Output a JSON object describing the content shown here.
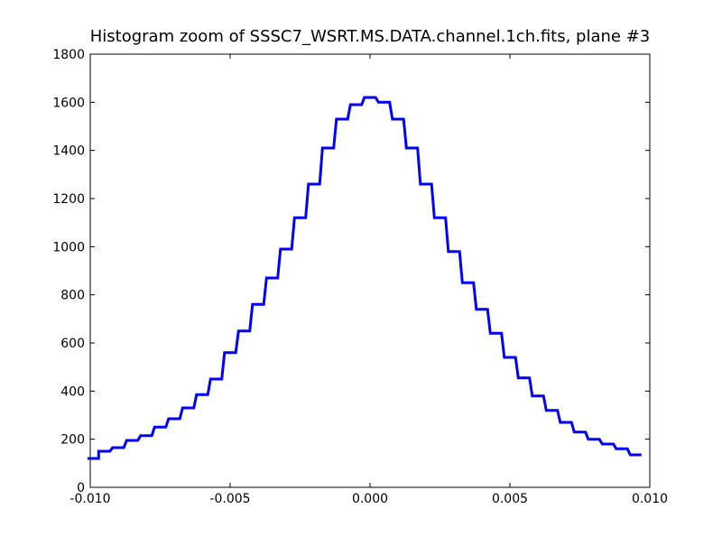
{
  "chart_data": {
    "type": "line",
    "step": true,
    "title": "Histogram zoom of SSSC7_WSRT.MS.DATA.channel.1ch.fits, plane #3",
    "xlabel": "",
    "ylabel": "",
    "xlim": [
      -0.01,
      0.01
    ],
    "ylim": [
      0,
      1800
    ],
    "x_ticks": [
      -0.01,
      -0.005,
      0.0,
      0.005,
      0.01
    ],
    "x_tick_labels": [
      "-0.010",
      "-0.005",
      "0.000",
      "0.005",
      "0.010"
    ],
    "y_ticks": [
      0,
      200,
      400,
      600,
      800,
      1000,
      1200,
      1400,
      1600,
      1800
    ],
    "y_tick_labels": [
      "0",
      "200",
      "400",
      "600",
      "800",
      "1000",
      "1200",
      "1400",
      "1600",
      "1800"
    ],
    "grid": false,
    "line_color": "#0000ff",
    "series": [
      {
        "x": [
          -0.0099,
          -0.0095,
          -0.009,
          -0.0085,
          -0.008,
          -0.0075,
          -0.007,
          -0.0065,
          -0.006,
          -0.0055,
          -0.005,
          -0.0045,
          -0.004,
          -0.0035,
          -0.003,
          -0.0025,
          -0.002,
          -0.0015,
          -0.001,
          -0.0005,
          0.0,
          0.0005,
          0.001,
          0.0015,
          0.002,
          0.0025,
          0.003,
          0.0035,
          0.004,
          0.0045,
          0.005,
          0.0055,
          0.006,
          0.0065,
          0.007,
          0.0075,
          0.008,
          0.0085,
          0.009,
          0.0095
        ],
        "values": [
          120,
          150,
          165,
          195,
          215,
          250,
          285,
          330,
          385,
          450,
          560,
          650,
          760,
          870,
          990,
          1120,
          1260,
          1410,
          1530,
          1590,
          1620,
          1600,
          1530,
          1410,
          1260,
          1120,
          980,
          850,
          740,
          640,
          540,
          455,
          380,
          320,
          270,
          230,
          200,
          180,
          160,
          135
        ]
      }
    ]
  }
}
